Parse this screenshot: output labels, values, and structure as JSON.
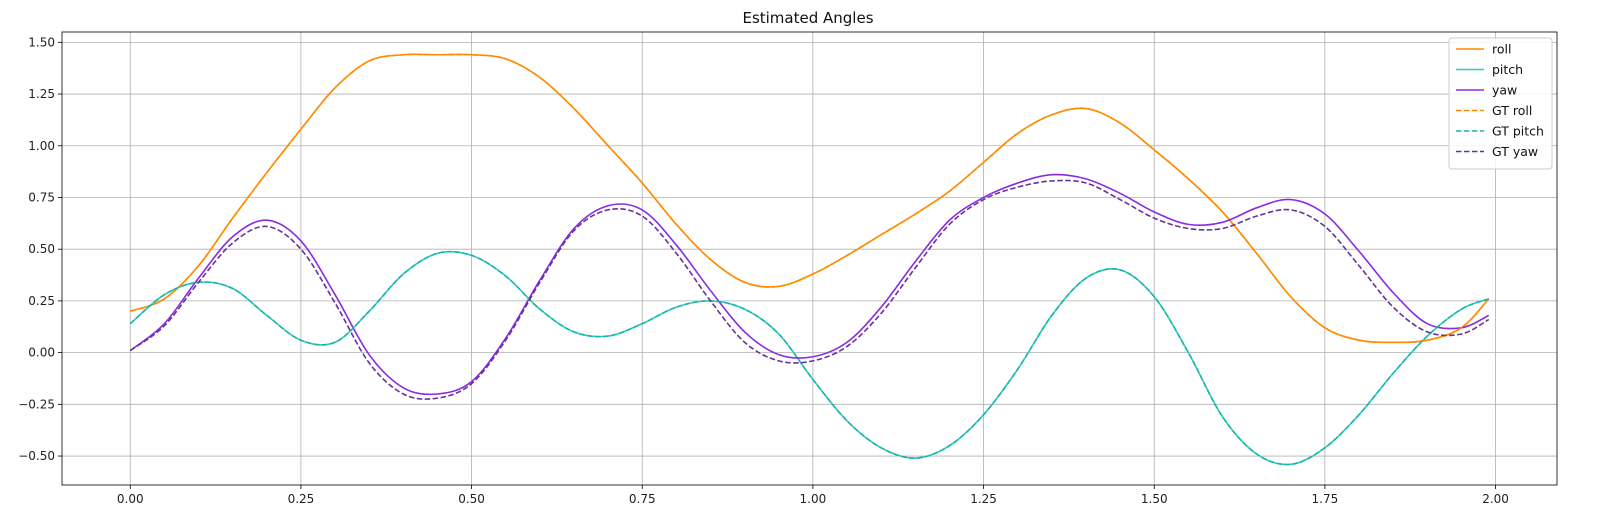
{
  "chart_data": {
    "type": "line",
    "title": "Estimated Angles",
    "xlabel": "",
    "ylabel": "",
    "xlim": [
      -0.1,
      2.09
    ],
    "ylim": [
      -0.64,
      1.55
    ],
    "xticks": [
      0.0,
      0.25,
      0.5,
      0.75,
      1.0,
      1.25,
      1.5,
      1.75,
      2.0
    ],
    "xtick_labels": [
      "0.00",
      "0.25",
      "0.50",
      "0.75",
      "1.00",
      "1.25",
      "1.50",
      "1.75",
      "2.00"
    ],
    "yticks": [
      -0.5,
      -0.25,
      0.0,
      0.25,
      0.5,
      0.75,
      1.0,
      1.25,
      1.5
    ],
    "ytick_labels": [
      "−0.50",
      "−0.25",
      "0.00",
      "0.25",
      "0.50",
      "0.75",
      "1.00",
      "1.25",
      "1.50"
    ],
    "grid": true,
    "legend_position": "top-right",
    "x": [
      0.0,
      0.05,
      0.1,
      0.15,
      0.2,
      0.25,
      0.3,
      0.35,
      0.4,
      0.45,
      0.5,
      0.55,
      0.6,
      0.65,
      0.7,
      0.75,
      0.8,
      0.85,
      0.9,
      0.95,
      1.0,
      1.05,
      1.1,
      1.15,
      1.2,
      1.25,
      1.3,
      1.35,
      1.4,
      1.45,
      1.5,
      1.55,
      1.6,
      1.65,
      1.7,
      1.75,
      1.8,
      1.85,
      1.9,
      1.95,
      1.99
    ],
    "series": [
      {
        "name": "roll",
        "color": "#ff8c00",
        "dash": false,
        "values": [
          0.2,
          0.26,
          0.42,
          0.65,
          0.87,
          1.08,
          1.28,
          1.41,
          1.44,
          1.44,
          1.44,
          1.42,
          1.33,
          1.18,
          1.0,
          0.82,
          0.62,
          0.45,
          0.34,
          0.32,
          0.38,
          0.47,
          0.57,
          0.67,
          0.78,
          0.92,
          1.06,
          1.15,
          1.18,
          1.11,
          0.98,
          0.84,
          0.68,
          0.48,
          0.27,
          0.12,
          0.06,
          0.05,
          0.06,
          0.12,
          0.26
        ]
      },
      {
        "name": "pitch",
        "color": "#20d4c0",
        "dash": false,
        "values": [
          0.14,
          0.28,
          0.34,
          0.31,
          0.18,
          0.06,
          0.05,
          0.2,
          0.38,
          0.48,
          0.47,
          0.37,
          0.21,
          0.1,
          0.08,
          0.14,
          0.22,
          0.25,
          0.21,
          0.09,
          -0.13,
          -0.33,
          -0.46,
          -0.51,
          -0.45,
          -0.3,
          -0.08,
          0.18,
          0.36,
          0.4,
          0.27,
          0.0,
          -0.31,
          -0.49,
          -0.54,
          -0.46,
          -0.3,
          -0.1,
          0.08,
          0.21,
          0.26
        ]
      },
      {
        "name": "yaw",
        "color": "#8a2be2",
        "dash": false,
        "values": [
          0.01,
          0.14,
          0.36,
          0.56,
          0.64,
          0.54,
          0.28,
          -0.01,
          -0.17,
          -0.2,
          -0.14,
          0.07,
          0.35,
          0.6,
          0.71,
          0.69,
          0.52,
          0.3,
          0.1,
          -0.01,
          -0.02,
          0.05,
          0.22,
          0.44,
          0.64,
          0.75,
          0.82,
          0.86,
          0.84,
          0.77,
          0.68,
          0.62,
          0.63,
          0.7,
          0.74,
          0.67,
          0.49,
          0.29,
          0.14,
          0.12,
          0.18
        ]
      },
      {
        "name": "GT roll",
        "color": "#ff8c00",
        "dash": true,
        "values": [
          0.2,
          0.26,
          0.42,
          0.65,
          0.87,
          1.08,
          1.28,
          1.41,
          1.44,
          1.44,
          1.44,
          1.42,
          1.33,
          1.18,
          1.0,
          0.82,
          0.62,
          0.45,
          0.34,
          0.32,
          0.38,
          0.47,
          0.57,
          0.67,
          0.78,
          0.92,
          1.06,
          1.15,
          1.18,
          1.11,
          0.98,
          0.84,
          0.68,
          0.48,
          0.27,
          0.12,
          0.06,
          0.05,
          0.06,
          0.12,
          0.26
        ]
      },
      {
        "name": "GT pitch",
        "color": "#20b2aa",
        "dash": true,
        "values": [
          0.14,
          0.28,
          0.34,
          0.31,
          0.18,
          0.06,
          0.05,
          0.2,
          0.38,
          0.48,
          0.47,
          0.37,
          0.21,
          0.1,
          0.08,
          0.14,
          0.22,
          0.25,
          0.21,
          0.09,
          -0.13,
          -0.33,
          -0.46,
          -0.51,
          -0.45,
          -0.3,
          -0.08,
          0.18,
          0.36,
          0.4,
          0.27,
          0.0,
          -0.31,
          -0.49,
          -0.54,
          -0.46,
          -0.3,
          -0.1,
          0.08,
          0.21,
          0.26
        ]
      },
      {
        "name": "GT yaw",
        "color": "#663399",
        "dash": true,
        "values": [
          0.01,
          0.13,
          0.34,
          0.53,
          0.61,
          0.5,
          0.24,
          -0.05,
          -0.2,
          -0.22,
          -0.15,
          0.06,
          0.34,
          0.59,
          0.69,
          0.66,
          0.48,
          0.25,
          0.05,
          -0.04,
          -0.04,
          0.03,
          0.19,
          0.41,
          0.62,
          0.74,
          0.8,
          0.83,
          0.82,
          0.74,
          0.65,
          0.6,
          0.6,
          0.66,
          0.69,
          0.61,
          0.42,
          0.22,
          0.1,
          0.09,
          0.16
        ]
      }
    ]
  }
}
